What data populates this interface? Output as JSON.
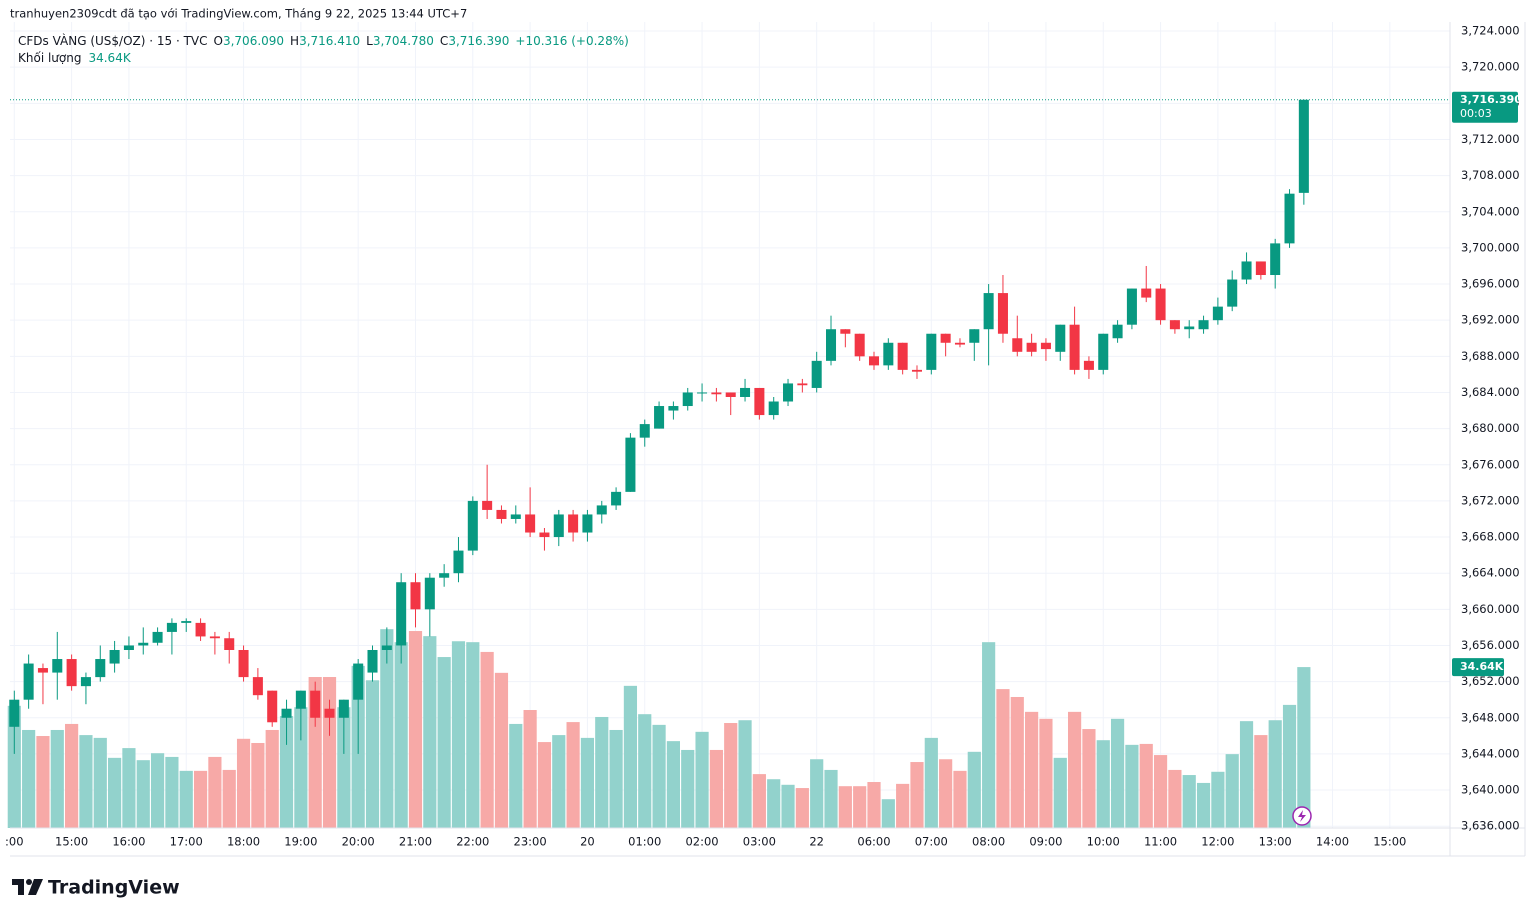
{
  "header": {
    "credit": "tranhuyen2309cdt đã tạo với TradingView.com, Tháng 9 22, 2025 13:44 UTC+7",
    "symbol": "CFDs VÀNG (US$/OZ) · 15 · TVC",
    "o_label": "O",
    "o_value": "3,706.090",
    "h_label": "H",
    "h_value": "3,716.410",
    "l_label": "L",
    "l_value": "3,704.780",
    "c_label": "C",
    "c_value": "3,716.390",
    "change": "+10.316 (+0.28%)",
    "volume_label": "Khối lượng",
    "volume_value": "34.64K"
  },
  "footer": {
    "brand": "TradingView"
  },
  "chart_data": {
    "type": "candlestick",
    "up_color": "#089981",
    "down_color": "#f23645",
    "volume_up_color": "#92d2cc",
    "volume_down_color": "#f7a9a7",
    "grid": true,
    "last_price_label": "3,716.390",
    "countdown": "00:03",
    "last_volume_label": "34.64K",
    "xlim": [
      -0.3,
      100.2
    ],
    "xticks": [
      {
        "value": 0,
        "label": ":00"
      },
      {
        "value": 4,
        "label": "15:00"
      },
      {
        "value": 8,
        "label": "16:00"
      },
      {
        "value": 12,
        "label": "17:00"
      },
      {
        "value": 16,
        "label": "18:00"
      },
      {
        "value": 20,
        "label": "19:00"
      },
      {
        "value": 24,
        "label": "20:00"
      },
      {
        "value": 28,
        "label": "21:00"
      },
      {
        "value": 32,
        "label": "22:00"
      },
      {
        "value": 36,
        "label": "23:00"
      },
      {
        "value": 40,
        "label": "20"
      },
      {
        "value": 44,
        "label": "01:00"
      },
      {
        "value": 48,
        "label": "02:00"
      },
      {
        "value": 52,
        "label": "03:00"
      },
      {
        "value": 56,
        "label": "22"
      },
      {
        "value": 60,
        "label": "06:00"
      },
      {
        "value": 64,
        "label": "07:00"
      },
      {
        "value": 68,
        "label": "08:00"
      },
      {
        "value": 72,
        "label": "09:00"
      },
      {
        "value": 76,
        "label": "10:00"
      },
      {
        "value": 80,
        "label": "11:00"
      },
      {
        "value": 84,
        "label": "12:00"
      },
      {
        "value": 88,
        "label": "13:00"
      },
      {
        "value": 92,
        "label": "14:00"
      },
      {
        "value": 96,
        "label": "15:00"
      }
    ],
    "ylim": [
      3635.8,
      3725
    ],
    "yticks": [
      {
        "value": 3636,
        "label": "3,636.000"
      },
      {
        "value": 3640,
        "label": "3,640.000"
      },
      {
        "value": 3644,
        "label": "3,644.000"
      },
      {
        "value": 3648,
        "label": "3,648.000"
      },
      {
        "value": 3652,
        "label": "3,652.000"
      },
      {
        "value": 3656,
        "label": "3,656.000"
      },
      {
        "value": 3660,
        "label": "3,660.000"
      },
      {
        "value": 3664,
        "label": "3,664.000"
      },
      {
        "value": 3668,
        "label": "3,668.000"
      },
      {
        "value": 3672,
        "label": "3,672.000"
      },
      {
        "value": 3676,
        "label": "3,676.000"
      },
      {
        "value": 3680,
        "label": "3,680.000"
      },
      {
        "value": 3684,
        "label": "3,684.000"
      },
      {
        "value": 3688,
        "label": "3,688.000"
      },
      {
        "value": 3692,
        "label": "3,692.000"
      },
      {
        "value": 3696,
        "label": "3,696.000"
      },
      {
        "value": 3700,
        "label": "3,700.000"
      },
      {
        "value": 3704,
        "label": "3,704.000"
      },
      {
        "value": 3708,
        "label": "3,708.000"
      },
      {
        "value": 3712,
        "label": "3,712.000"
      },
      {
        "value": 3716,
        "label": "3,716.000"
      },
      {
        "value": 3720,
        "label": "3,720.000"
      },
      {
        "value": 3724,
        "label": "3,724.000"
      }
    ],
    "y2lim": [
      0,
      173.5
    ],
    "open": [
      3647,
      3650,
      3653.5,
      3653,
      3654.5,
      3651.5,
      3652.5,
      3654,
      3655.5,
      3656,
      3656.3,
      3657.5,
      3658.5,
      3658.5,
      3657,
      3656.8,
      3655.5,
      3652.5,
      3651,
      3648,
      3649,
      3651,
      3649,
      3648,
      3650,
      3653,
      3655.5,
      3656,
      3663,
      3660,
      3663.5,
      3664,
      3666.5,
      3672,
      3671,
      3670,
      3670.5,
      3668.5,
      3668,
      3670.5,
      3668.5,
      3670.5,
      3671.5,
      3673,
      3679,
      3680,
      3682,
      3682.5,
      3684,
      3684,
      3684,
      3683.5,
      3684.5,
      3681.5,
      3683,
      3685,
      3684.5,
      3687.5,
      3691,
      3690.5,
      3688,
      3687,
      3689.5,
      3686.5,
      3686.5,
      3690.5,
      3689.5,
      3689.5,
      3691,
      3695,
      3690,
      3689.5,
      3689.5,
      3688.5,
      3691.5,
      3687.5,
      3686.5,
      3690,
      3691.5,
      3695.5,
      3695.5,
      3692,
      3691,
      3691,
      3692,
      3693.5,
      3696.5,
      3698.5,
      3697,
      3700.5,
      3706.09
    ],
    "high": [
      3651,
      3655,
      3654,
      3657.5,
      3655,
      3653,
      3656,
      3656.5,
      3657,
      3658,
      3658,
      3659,
      3659,
      3659,
      3657.5,
      3657.5,
      3656,
      3653.5,
      3651,
      3650,
      3651,
      3652,
      3650,
      3650,
      3654.5,
      3656,
      3658,
      3664,
      3664,
      3664,
      3665,
      3668,
      3672.5,
      3676,
      3671.5,
      3671.5,
      3673.5,
      3669,
      3671,
      3671,
      3671,
      3672,
      3673.5,
      3679.5,
      3681,
      3683,
      3683,
      3684.5,
      3685,
      3684.5,
      3684,
      3685.5,
      3684.5,
      3683.5,
      3685.5,
      3685.5,
      3688.5,
      3692.5,
      3691,
      3690.5,
      3688.5,
      3690,
      3689.5,
      3687,
      3690.5,
      3690.5,
      3690,
      3691,
      3696,
      3697,
      3692.5,
      3690.5,
      3690,
      3691.5,
      3693.5,
      3688,
      3690.5,
      3692,
      3695.5,
      3698,
      3696,
      3692,
      3692,
      3692.5,
      3694.5,
      3697.5,
      3699.5,
      3698.5,
      3701,
      3706.5,
      3716.41
    ],
    "low": [
      3644,
      3649,
      3649.5,
      3650,
      3651,
      3649.5,
      3652,
      3653,
      3654.5,
      3655,
      3656,
      3655,
      3657.5,
      3656.5,
      3655,
      3654,
      3652,
      3650,
      3647,
      3645,
      3645.5,
      3647,
      3646,
      3644,
      3644,
      3652,
      3654,
      3654,
      3658,
      3657,
      3662.5,
      3663,
      3666,
      3670,
      3669.5,
      3669.5,
      3668,
      3666.5,
      3667,
      3667.5,
      3667.5,
      3669.5,
      3671,
      3673,
      3678,
      3680,
      3681,
      3682,
      3683,
      3683,
      3681.5,
      3683,
      3681,
      3681,
      3682.5,
      3684,
      3684,
      3687,
      3689,
      3687.5,
      3686.5,
      3686.5,
      3686,
      3685.5,
      3686,
      3688,
      3689,
      3687.5,
      3687,
      3689.5,
      3688,
      3688,
      3687.5,
      3687.5,
      3686,
      3685.5,
      3686,
      3689.5,
      3691,
      3694,
      3691.5,
      3690.5,
      3690,
      3690.5,
      3691.5,
      3693,
      3696,
      3696.5,
      3695.5,
      3700,
      3704.78
    ],
    "close": [
      3650,
      3654,
      3653,
      3654.5,
      3651.5,
      3652.5,
      3654.5,
      3655.5,
      3656,
      3656.3,
      3657.5,
      3658.5,
      3658.7,
      3657,
      3656.8,
      3655.5,
      3652.5,
      3650.5,
      3647.5,
      3649,
      3651,
      3648,
      3648,
      3650,
      3654,
      3655.5,
      3656,
      3663,
      3660,
      3663.5,
      3664,
      3666.5,
      3672,
      3671,
      3670,
      3670.5,
      3668.5,
      3668,
      3670.5,
      3668.5,
      3670.5,
      3671.5,
      3673,
      3679,
      3680.5,
      3682.5,
      3682.5,
      3684,
      3684,
      3683.8,
      3683.5,
      3684.5,
      3681.5,
      3683,
      3685,
      3684.8,
      3687.5,
      3691,
      3690.5,
      3688,
      3687,
      3689.5,
      3686.5,
      3686.3,
      3690.5,
      3689.5,
      3689.3,
      3691,
      3695,
      3690.5,
      3688.5,
      3688.5,
      3688.8,
      3691.5,
      3686.5,
      3686.5,
      3690.5,
      3691.5,
      3695.5,
      3694.5,
      3692,
      3691,
      3691.3,
      3692,
      3693.5,
      3696.5,
      3698.5,
      3697,
      3700.5,
      3706,
      3716.39
    ],
    "volume": [
      26.3,
      21.1,
      19.8,
      21.1,
      22.4,
      20,
      19.4,
      15.1,
      17.2,
      14.6,
      16.1,
      15.3,
      12.3,
      12.3,
      15.3,
      12.5,
      19.2,
      18.3,
      21.1,
      24.1,
      26,
      32.5,
      32.5,
      26,
      34.9,
      31.8,
      42.8,
      40,
      42.4,
      41.3,
      36.8,
      40.2,
      40,
      37.9,
      33.4,
      22.4,
      25.4,
      18.5,
      20,
      22.8,
      19.4,
      23.9,
      21.1,
      30.6,
      24.5,
      22.2,
      18.7,
      16.8,
      20.7,
      16.8,
      22.6,
      23.2,
      11.6,
      10.5,
      9.3,
      8.6,
      14.8,
      12.5,
      9,
      9,
      9.9,
      6.2,
      9.5,
      14.2,
      19.4,
      14.8,
      12.3,
      16.4,
      40,
      29.9,
      28.2,
      25,
      23.5,
      15.1,
      25,
      21.3,
      18.9,
      23.5,
      17.9,
      18.1,
      15.7,
      12.5,
      11.4,
      9.7,
      12.1,
      15.9,
      23,
      20,
      23.2,
      26.5,
      34.64
    ]
  }
}
